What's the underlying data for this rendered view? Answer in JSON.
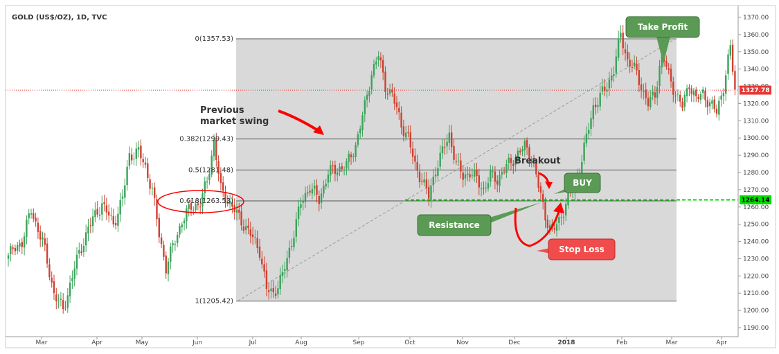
{
  "chart_data": {
    "type": "candlestick",
    "title": "GOLD (US$/OZ), 1D, TVC",
    "x_labels": [
      "Mar",
      "Apr",
      "May",
      "Jun",
      "Jul",
      "Aug",
      "Sep",
      "Oct",
      "Nov",
      "Dec",
      "2018",
      "Feb",
      "Mar",
      "Apr"
    ],
    "ylim": [
      1185,
      1375
    ],
    "y_ticks": [
      "1370.00",
      "1360.00",
      "1350.00",
      "1340.00",
      "1330.00",
      "1320.00",
      "1310.00",
      "1300.00",
      "1290.00",
      "1280.00",
      "1270.00",
      "1260.00",
      "1250.00",
      "1240.00",
      "1230.00",
      "1220.00",
      "1210.00",
      "1200.00",
      "1190.00"
    ],
    "last_price": {
      "value": 1327.78,
      "label": "1327.78",
      "color": "#e53935"
    },
    "resistance": {
      "value": 1264.14,
      "label": "1264.14",
      "color": "#00dd00"
    },
    "fib_levels": [
      {
        "ratio": "0",
        "value": 1357.53,
        "label": "0(1357.53)"
      },
      {
        "ratio": "0.382",
        "value": 1299.43,
        "label": "0.382(1299.43)"
      },
      {
        "ratio": "0.5",
        "value": 1281.48,
        "label": "0.5(1281.48)"
      },
      {
        "ratio": "0.618",
        "value": 1263.53,
        "label": "0.618(1263.53)"
      },
      {
        "ratio": "1",
        "value": 1205.42,
        "label": "1(1205.42)"
      }
    ],
    "path_keypoints": [
      [
        0,
        1232
      ],
      [
        6,
        1240
      ],
      [
        10,
        1258
      ],
      [
        15,
        1240
      ],
      [
        20,
        1210
      ],
      [
        24,
        1200
      ],
      [
        29,
        1225
      ],
      [
        35,
        1248
      ],
      [
        41,
        1262
      ],
      [
        46,
        1250
      ],
      [
        50,
        1265
      ],
      [
        53,
        1290
      ],
      [
        57,
        1292
      ],
      [
        60,
        1283
      ],
      [
        63,
        1270
      ],
      [
        66,
        1244
      ],
      [
        69,
        1225
      ],
      [
        72,
        1237
      ],
      [
        76,
        1252
      ],
      [
        80,
        1260
      ],
      [
        84,
        1262
      ],
      [
        87,
        1275
      ],
      [
        90,
        1298
      ],
      [
        93,
        1270
      ],
      [
        96,
        1264
      ],
      [
        100,
        1256
      ],
      [
        103,
        1250
      ],
      [
        106,
        1244
      ],
      [
        110,
        1235
      ],
      [
        113,
        1212
      ],
      [
        116,
        1210
      ],
      [
        120,
        1220
      ],
      [
        124,
        1240
      ],
      [
        128,
        1262
      ],
      [
        132,
        1272
      ],
      [
        136,
        1264
      ],
      [
        140,
        1280
      ],
      [
        144,
        1282
      ],
      [
        148,
        1284
      ],
      [
        152,
        1296
      ],
      [
        156,
        1318
      ],
      [
        159,
        1338
      ],
      [
        162,
        1348
      ],
      [
        165,
        1330
      ],
      [
        168,
        1325
      ],
      [
        172,
        1308
      ],
      [
        175,
        1300
      ],
      [
        178,
        1284
      ],
      [
        181,
        1276
      ],
      [
        184,
        1266
      ],
      [
        187,
        1282
      ],
      [
        190,
        1292
      ],
      [
        193,
        1302
      ],
      [
        196,
        1285
      ],
      [
        199,
        1278
      ],
      [
        202,
        1280
      ],
      [
        205,
        1276
      ],
      [
        208,
        1270
      ],
      [
        211,
        1278
      ],
      [
        214,
        1276
      ],
      [
        217,
        1282
      ],
      [
        220,
        1286
      ],
      [
        223,
        1291
      ],
      [
        226,
        1295
      ],
      [
        229,
        1290
      ],
      [
        232,
        1272
      ],
      [
        235,
        1255
      ],
      [
        238,
        1245
      ],
      [
        241,
        1252
      ],
      [
        244,
        1262
      ],
      [
        247,
        1270
      ],
      [
        250,
        1282
      ],
      [
        253,
        1300
      ],
      [
        256,
        1318
      ],
      [
        259,
        1324
      ],
      [
        262,
        1330
      ],
      [
        265,
        1340
      ],
      [
        268,
        1360
      ],
      [
        271,
        1345
      ],
      [
        274,
        1340
      ],
      [
        277,
        1330
      ],
      [
        280,
        1320
      ],
      [
        283,
        1325
      ],
      [
        286,
        1350
      ],
      [
        289,
        1336
      ],
      [
        292,
        1326
      ],
      [
        295,
        1318
      ],
      [
        298,
        1332
      ],
      [
        301,
        1322
      ],
      [
        304,
        1326
      ],
      [
        307,
        1320
      ],
      [
        310,
        1315
      ],
      [
        313,
        1330
      ],
      [
        316,
        1352
      ],
      [
        318,
        1328
      ]
    ]
  },
  "annotations": {
    "prev_swing_line1": "Previous",
    "prev_swing_line2": "market swing",
    "breakout": "Breakout",
    "take_profit": "Take Profit",
    "buy": "BUY",
    "resistance": "Resistance",
    "stop_loss": "Stop Loss"
  },
  "colors": {
    "up": "#3aa35a",
    "down": "#d04030",
    "fib_zone": "#d9d9d9",
    "green_box": "#5b9a55",
    "red_box": "#f04c4c",
    "arrow": "#ff0000"
  }
}
